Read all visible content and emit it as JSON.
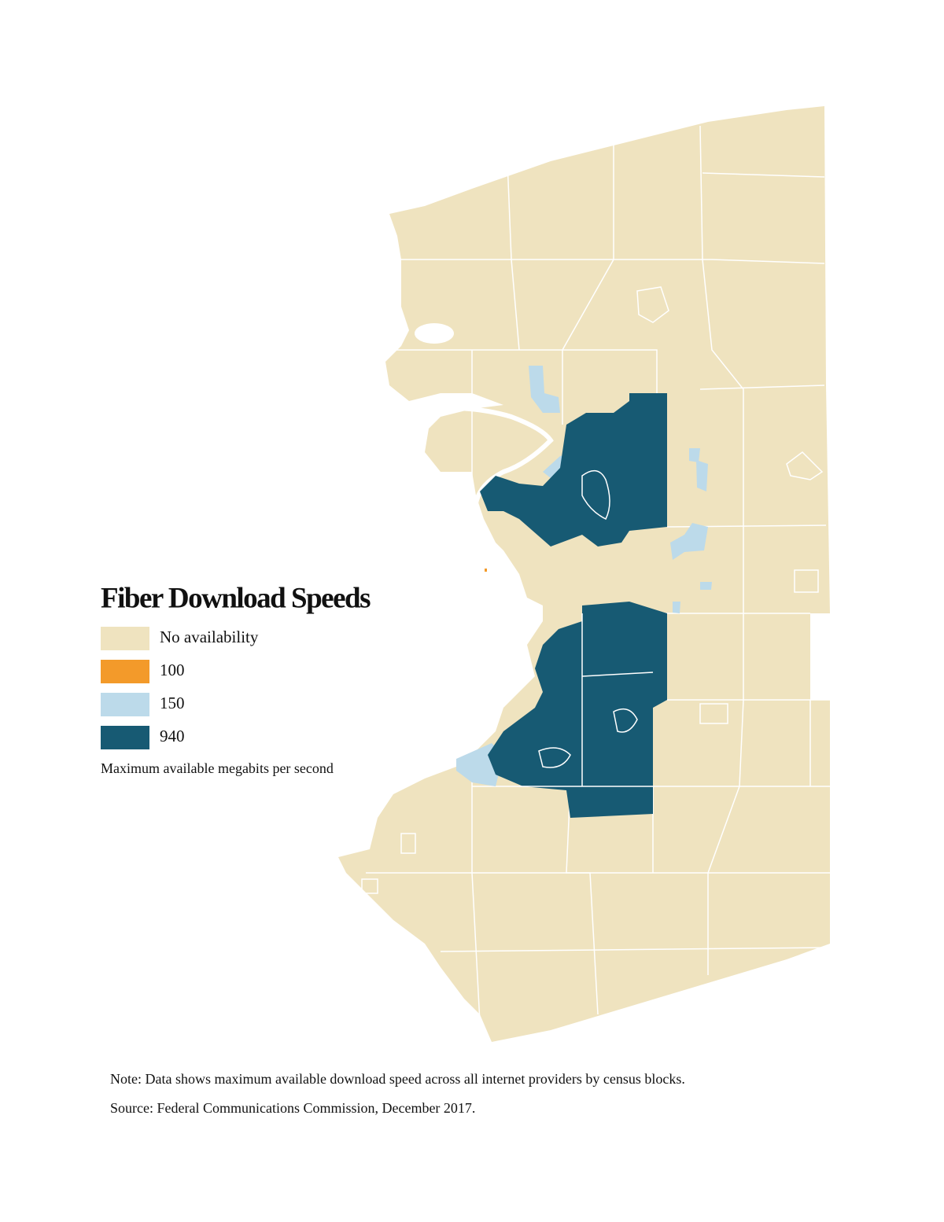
{
  "legend": {
    "title": "Fiber Download Speeds",
    "items": [
      {
        "label": "No availability",
        "color": "#efe3bf"
      },
      {
        "label": "100",
        "color": "#f39a2a"
      },
      {
        "label": "150",
        "color": "#bcdaea"
      },
      {
        "label": "940",
        "color": "#175a73"
      }
    ],
    "subtitle": "Maximum available megabits per second"
  },
  "footer": {
    "note": "Note: Data shows maximum available download speed across all internet providers by census blocks.",
    "source": "Source: Federal Communications Commission, December 2017."
  }
}
